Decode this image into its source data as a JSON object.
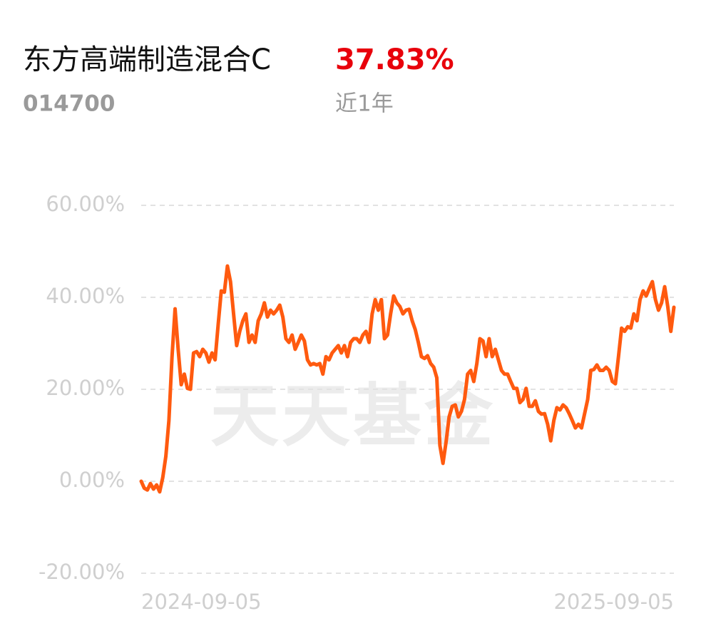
{
  "fund": {
    "name": "东方高端制造混合C",
    "return": "37.83%",
    "code": "014700",
    "period": "近1年"
  },
  "watermark": "天天基金",
  "chart_data": {
    "type": "line",
    "categories": [
      "2024-09-05",
      null,
      null,
      null,
      null,
      null,
      null,
      null,
      null,
      null,
      null,
      null,
      null,
      null,
      null,
      null,
      null,
      null,
      null,
      null,
      null,
      null,
      null,
      null,
      null,
      null,
      null,
      null,
      null,
      null,
      null,
      null,
      null,
      null,
      null,
      null,
      null,
      null,
      null,
      null,
      null,
      null,
      null,
      null,
      null,
      null,
      null,
      null,
      null,
      null,
      null,
      null,
      null,
      null,
      null,
      null,
      null,
      null,
      null,
      null,
      null,
      null,
      null,
      null,
      null,
      null,
      null,
      null,
      null,
      null,
      null,
      null,
      null,
      null,
      null,
      null,
      null,
      null,
      null,
      null,
      null,
      null,
      null,
      null,
      null,
      null,
      null,
      null,
      null,
      null,
      null,
      null,
      null,
      null,
      null,
      null,
      null,
      null,
      null,
      null,
      null,
      null,
      null,
      null,
      null,
      null,
      null,
      null,
      null,
      null,
      null,
      null,
      null,
      null,
      null,
      null,
      null,
      null,
      null,
      null,
      null,
      null,
      null,
      null,
      null,
      null,
      null,
      null,
      null,
      null,
      null,
      null,
      null,
      null,
      null,
      null,
      null,
      null,
      null,
      null,
      null,
      null,
      null,
      null,
      null,
      null,
      null,
      null,
      null,
      null,
      null,
      null,
      null,
      null,
      null,
      null,
      null,
      null,
      null,
      null,
      null,
      null,
      null,
      null,
      null,
      null,
      null,
      null,
      null,
      null,
      null,
      null,
      null,
      "2025-09-05"
    ],
    "values": [
      0,
      -1.5,
      -1.9,
      -0.5,
      -1.7,
      -0.8,
      -2.3,
      0.8,
      5.4,
      13.2,
      27,
      37.5,
      28.7,
      21,
      23.3,
      20.2,
      20,
      27.9,
      28.2,
      27.1,
      28.7,
      27.9,
      25.9,
      27.9,
      26.4,
      34.1,
      41.4,
      41.1,
      46.8,
      43.4,
      36.4,
      29.5,
      32.6,
      34.9,
      36.4,
      30.2,
      31.8,
      30.2,
      34.9,
      36.4,
      38.8,
      35.7,
      37.2,
      36.4,
      37.2,
      38.3,
      35.7,
      31,
      30.2,
      31.8,
      28.7,
      30.2,
      31.8,
      30.5,
      26.4,
      25.3,
      25.6,
      25.3,
      25.6,
      23.3,
      27.1,
      26.4,
      27.9,
      28.7,
      29.5,
      27.9,
      29.5,
      27.1,
      30.2,
      31,
      31,
      30.2,
      31.8,
      32.6,
      30.2,
      36.4,
      39.5,
      37.2,
      39.5,
      31,
      31.8,
      36.4,
      40.3,
      38.8,
      38,
      36.4,
      37.2,
      37.4,
      34.9,
      33,
      30.2,
      27.1,
      26.7,
      27.3,
      25.6,
      24.8,
      22.5,
      7.8,
      3.9,
      8.5,
      14,
      16.3,
      16.6,
      14,
      15.2,
      17.8,
      23.3,
      24.1,
      21.7,
      25.6,
      31,
      30.5,
      27.1,
      31,
      27.1,
      28.7,
      26.4,
      24.1,
      23.3,
      23.3,
      21.7,
      20.2,
      20.2,
      17.1,
      17.8,
      20.2,
      16.3,
      16.3,
      17.5,
      15.2,
      14.6,
      14.7,
      12.4,
      8.8,
      13.2,
      16,
      15.5,
      16.6,
      16,
      14.7,
      13.2,
      11.6,
      12.4,
      11.6,
      14.7,
      17.8,
      24.1,
      24.3,
      25.3,
      24.1,
      24.1,
      24.8,
      24.1,
      21.7,
      21.2,
      27.1,
      33.3,
      32.6,
      33.6,
      33.3,
      36.4,
      34.9,
      39.5,
      41.4,
      40.3,
      41.9,
      43.4,
      39.5,
      37.2,
      38.8,
      42.3,
      38,
      32.6,
      37.83
    ],
    "color": "#ff5a0f",
    "ylim": [
      -20,
      60
    ],
    "yticks": [
      {
        "value": -20,
        "label": "-20.00%"
      },
      {
        "value": 0,
        "label": "0.00%"
      },
      {
        "value": 20,
        "label": "20.00%"
      },
      {
        "value": 40,
        "label": "40.00%"
      },
      {
        "value": 60,
        "label": "60.00%"
      }
    ],
    "grid": true
  }
}
